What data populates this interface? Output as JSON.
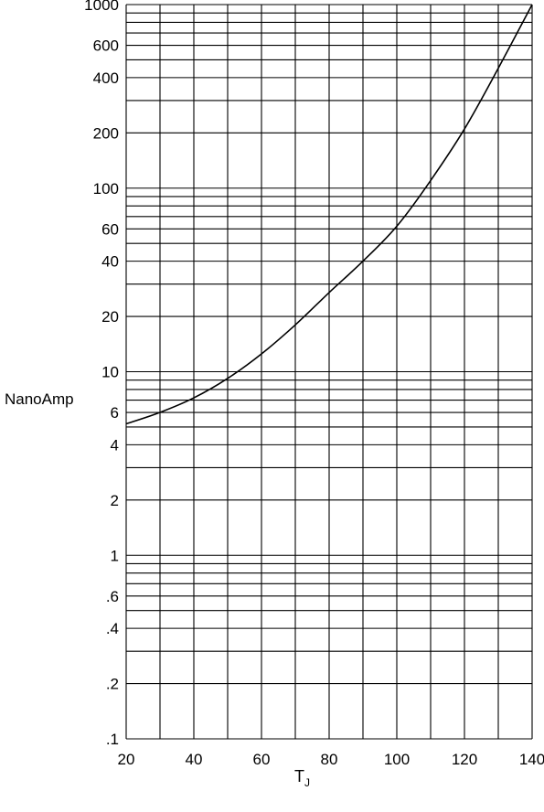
{
  "chart_data": {
    "type": "line",
    "ylabel": "NanoAmp",
    "xlabel_main": "T",
    "xlabel_sub": "J",
    "xlim": [
      20,
      140
    ],
    "ylim": [
      0.1,
      1000
    ],
    "yscale": "log",
    "grid": true,
    "x_ticks": [
      "20",
      "40",
      "60",
      "80",
      "100",
      "120",
      "140"
    ],
    "x_tick_values": [
      20,
      40,
      60,
      80,
      100,
      120,
      140
    ],
    "y_ticks": [
      ".1",
      ".2",
      ".4",
      ".6",
      "1",
      "2",
      "4",
      "6",
      "10",
      "20",
      "40",
      "60",
      "100",
      "200",
      "400",
      "600",
      "1000"
    ],
    "y_tick_values": [
      0.1,
      0.2,
      0.4,
      0.6,
      1,
      2,
      4,
      6,
      10,
      20,
      40,
      60,
      100,
      200,
      400,
      600,
      1000
    ],
    "series": [
      {
        "x": [
          20,
          30,
          40,
          50,
          60,
          70,
          80,
          90,
          100,
          110,
          120,
          130,
          140
        ],
        "y": [
          5.2,
          6.0,
          7.2,
          9.2,
          12.5,
          18,
          27,
          40,
          62,
          110,
          210,
          450,
          1000
        ]
      }
    ]
  }
}
